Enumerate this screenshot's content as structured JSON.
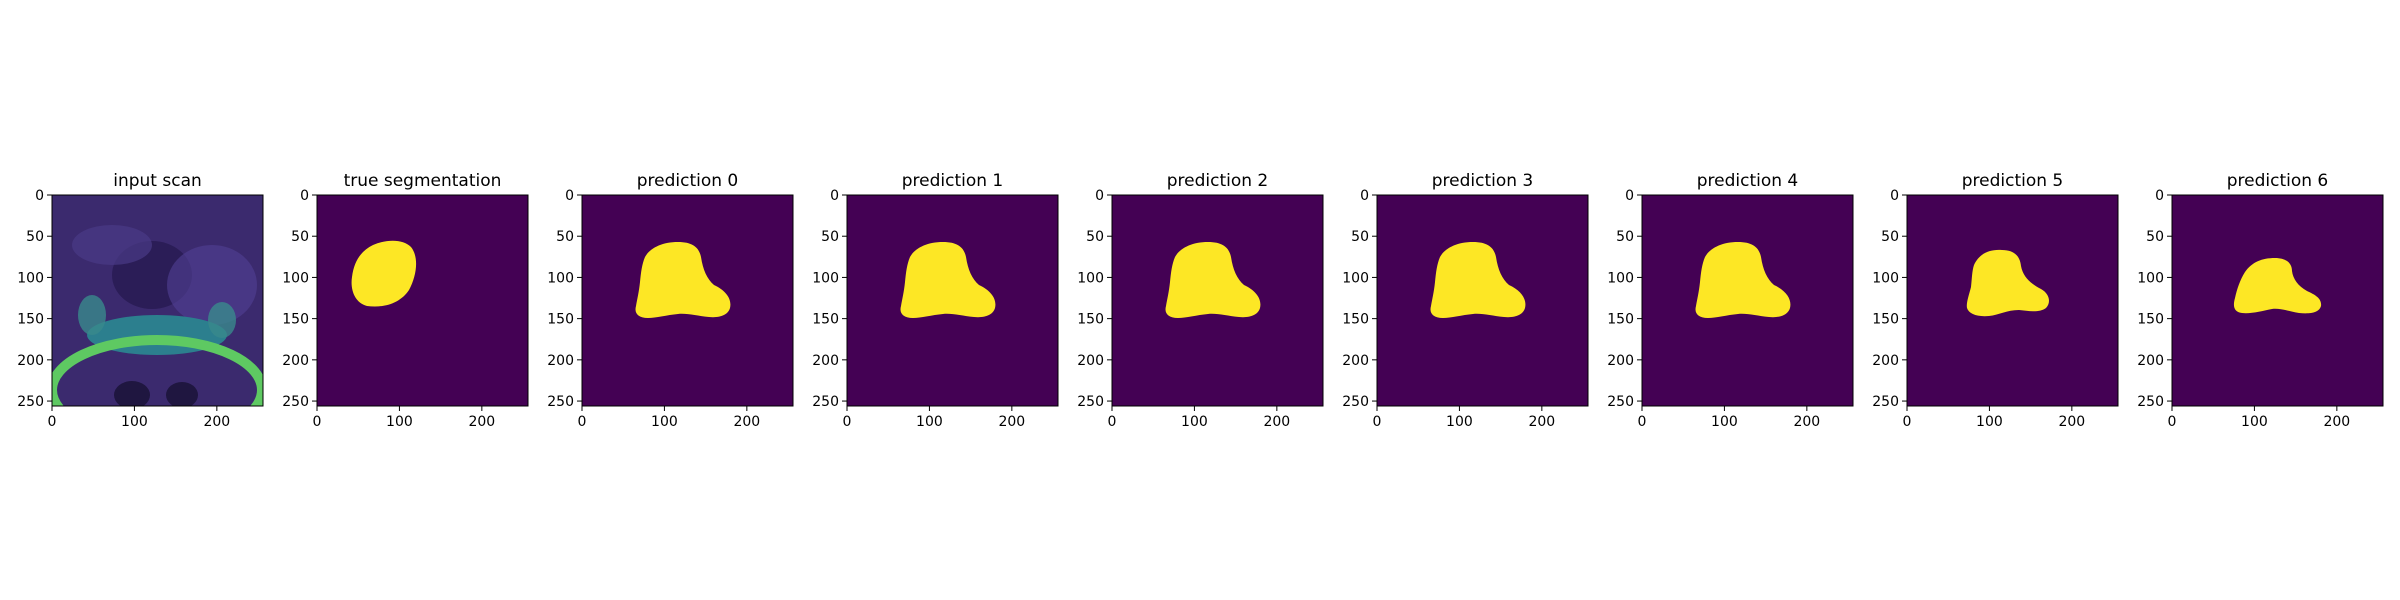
{
  "panels": [
    {
      "title": "input scan",
      "kind": "scan"
    },
    {
      "title": "true segmentation",
      "kind": "mask",
      "shape": "true"
    },
    {
      "title": "prediction 0",
      "kind": "mask",
      "shape": "pred"
    },
    {
      "title": "prediction 1",
      "kind": "mask",
      "shape": "pred"
    },
    {
      "title": "prediction 2",
      "kind": "mask",
      "shape": "pred"
    },
    {
      "title": "prediction 3",
      "kind": "mask",
      "shape": "pred"
    },
    {
      "title": "prediction 4",
      "kind": "mask",
      "shape": "pred"
    },
    {
      "title": "prediction 5",
      "kind": "mask",
      "shape": "pred5"
    },
    {
      "title": "prediction 6",
      "kind": "mask",
      "shape": "pred6"
    }
  ],
  "axes": {
    "x_ticks": [
      "0",
      "100",
      "200"
    ],
    "y_ticks": [
      "0",
      "50",
      "100",
      "150",
      "200",
      "250"
    ]
  },
  "colors": {
    "background_mask": "#440154",
    "foreground_mask": "#fde725",
    "scan_dark": "#3b2a6e",
    "scan_mid": "#2c7f8e",
    "scan_bright": "#5ec962"
  }
}
